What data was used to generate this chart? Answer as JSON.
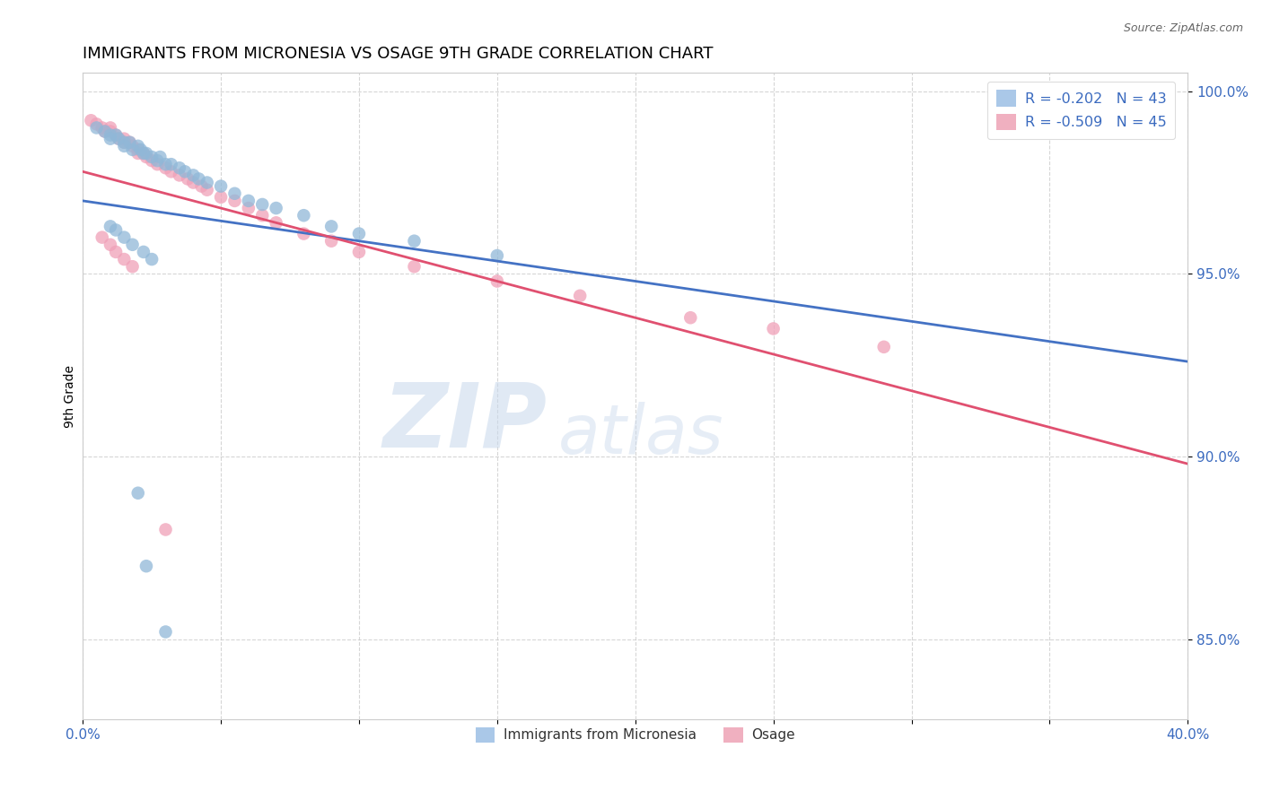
{
  "title": "IMMIGRANTS FROM MICRONESIA VS OSAGE 9TH GRADE CORRELATION CHART",
  "source_text": "Source: ZipAtlas.com",
  "ylabel": "9th Grade",
  "xlim": [
    0.0,
    0.4
  ],
  "ylim": [
    0.828,
    1.005
  ],
  "xticks": [
    0.0,
    0.05,
    0.1,
    0.15,
    0.2,
    0.25,
    0.3,
    0.35,
    0.4
  ],
  "yticks": [
    0.85,
    0.9,
    0.95,
    1.0
  ],
  "blue_color": "#90b8d8",
  "pink_color": "#f0a0b8",
  "blue_line_color": "#4472c4",
  "pink_line_color": "#e05070",
  "R_blue": -0.202,
  "N_blue": 43,
  "R_pink": -0.509,
  "N_pink": 45,
  "legend_label_blue": "Immigrants from Micronesia",
  "legend_label_pink": "Osage",
  "watermark_zip": "ZIP",
  "watermark_atlas": "atlas",
  "title_fontsize": 13,
  "axis_label_fontsize": 10,
  "tick_fontsize": 11,
  "dot_size": 110,
  "blue_scatter_x": [
    0.005,
    0.008,
    0.01,
    0.01,
    0.012,
    0.013,
    0.015,
    0.015,
    0.017,
    0.018,
    0.02,
    0.021,
    0.022,
    0.023,
    0.025,
    0.027,
    0.028,
    0.03,
    0.032,
    0.035,
    0.037,
    0.04,
    0.042,
    0.045,
    0.05,
    0.055,
    0.06,
    0.065,
    0.07,
    0.08,
    0.09,
    0.1,
    0.12,
    0.15,
    0.01,
    0.012,
    0.015,
    0.018,
    0.022,
    0.025,
    0.02,
    0.023,
    0.03
  ],
  "blue_scatter_y": [
    0.99,
    0.989,
    0.988,
    0.987,
    0.988,
    0.987,
    0.986,
    0.985,
    0.986,
    0.984,
    0.985,
    0.984,
    0.983,
    0.983,
    0.982,
    0.981,
    0.982,
    0.98,
    0.98,
    0.979,
    0.978,
    0.977,
    0.976,
    0.975,
    0.974,
    0.972,
    0.97,
    0.969,
    0.968,
    0.966,
    0.963,
    0.961,
    0.959,
    0.955,
    0.963,
    0.962,
    0.96,
    0.958,
    0.956,
    0.954,
    0.89,
    0.87,
    0.852
  ],
  "pink_scatter_x": [
    0.003,
    0.005,
    0.007,
    0.008,
    0.01,
    0.01,
    0.012,
    0.013,
    0.015,
    0.015,
    0.017,
    0.018,
    0.02,
    0.02,
    0.022,
    0.023,
    0.025,
    0.027,
    0.03,
    0.032,
    0.035,
    0.038,
    0.04,
    0.043,
    0.045,
    0.05,
    0.055,
    0.06,
    0.065,
    0.07,
    0.08,
    0.09,
    0.1,
    0.12,
    0.15,
    0.18,
    0.22,
    0.25,
    0.29,
    0.007,
    0.01,
    0.012,
    0.015,
    0.018,
    0.03
  ],
  "pink_scatter_y": [
    0.992,
    0.991,
    0.99,
    0.989,
    0.99,
    0.989,
    0.988,
    0.987,
    0.987,
    0.986,
    0.986,
    0.985,
    0.984,
    0.983,
    0.983,
    0.982,
    0.981,
    0.98,
    0.979,
    0.978,
    0.977,
    0.976,
    0.975,
    0.974,
    0.973,
    0.971,
    0.97,
    0.968,
    0.966,
    0.964,
    0.961,
    0.959,
    0.956,
    0.952,
    0.948,
    0.944,
    0.938,
    0.935,
    0.93,
    0.96,
    0.958,
    0.956,
    0.954,
    0.952,
    0.88
  ],
  "blue_line_x0": 0.0,
  "blue_line_x1": 0.4,
  "blue_line_y0": 0.97,
  "blue_line_y1": 0.926,
  "pink_line_x0": 0.0,
  "pink_line_x1": 0.4,
  "pink_line_y0": 0.978,
  "pink_line_y1": 0.898
}
